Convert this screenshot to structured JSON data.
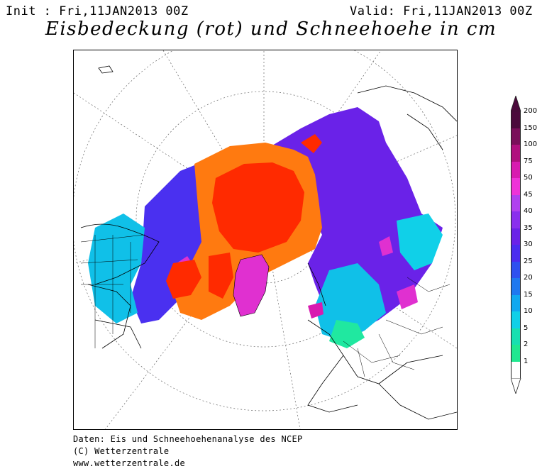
{
  "header": {
    "init": "Init : Fri,11JAN2013 00Z",
    "valid": "Valid: Fri,11JAN2013 00Z",
    "title": "Eisbedeckung (rot) und Schneehoehe in cm"
  },
  "legend": {
    "levels": [
      "200",
      "150",
      "100",
      "75",
      "50",
      "45",
      "40",
      "35",
      "30",
      "25",
      "20",
      "15",
      "10",
      "5",
      "2",
      "1"
    ],
    "colors": [
      "#4b0a3c",
      "#7a0f5a",
      "#b0107e",
      "#d81bb0",
      "#ee33d8",
      "#b040ef",
      "#8a2fee",
      "#6a22e8",
      "#4a2cf0",
      "#2e50f0",
      "#1e78f0",
      "#10a8f0",
      "#10d0e8",
      "#18e0b0",
      "#20e890",
      "#ffffff"
    ]
  },
  "map": {
    "colors": {
      "ice": "#ff2a00",
      "ice_edge": "#ff7a10",
      "snow_deep": "#6a22e8",
      "snow_mid": "#4a30f0",
      "snow_light": "#10c0e8",
      "snow_thin": "#20e8a0",
      "snow_heavy": "#e030d0",
      "land_line": "#000000"
    }
  },
  "footer": {
    "line1": "Daten: Eis und Schneehoehenanalyse des NCEP",
    "line2": "(C) Wetterzentrale",
    "line3": "www.wetterzentrale.de"
  }
}
